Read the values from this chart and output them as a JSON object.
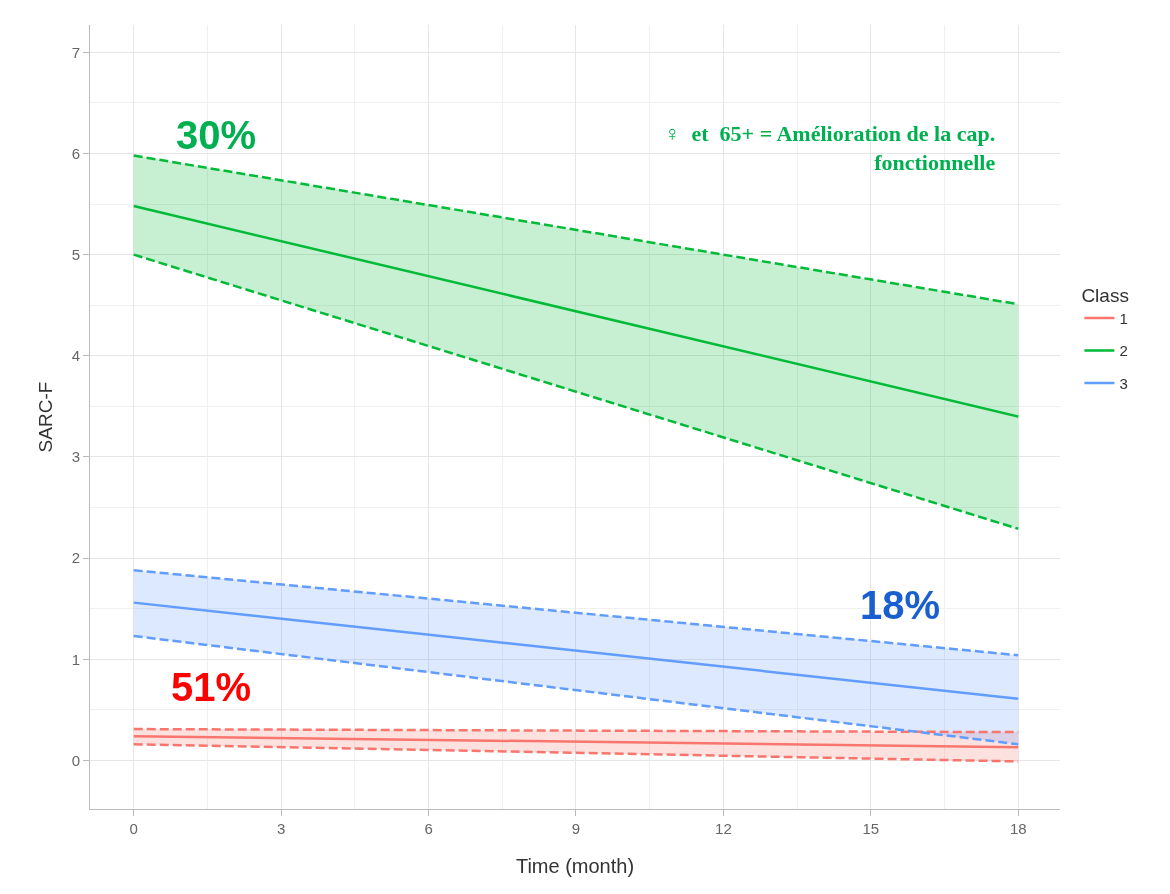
{
  "chart_data": {
    "type": "line",
    "xlabel": "Time (month)",
    "ylabel": "SARC-F",
    "legend_title": "Class",
    "xlim": [
      -0.89,
      18.85
    ],
    "xticks": [
      0,
      3,
      6,
      9,
      12,
      15,
      18
    ],
    "ylim": [
      -0.48,
      7.27
    ],
    "yticks": [
      0,
      1,
      2,
      3,
      4,
      5,
      6,
      7
    ],
    "grid": true,
    "legend": "right",
    "line_style": "solid",
    "marker": "none",
    "x": [
      0,
      18
    ],
    "series": [
      {
        "name": "1",
        "color": "#f8766d",
        "values": [
          0.24,
          0.13
        ],
        "lower": [
          0.16,
          -0.01
        ],
        "upper": [
          0.31,
          0.28
        ]
      },
      {
        "name": "2",
        "color": "#00ba38",
        "values": [
          5.48,
          3.4
        ],
        "lower": [
          5.0,
          2.29
        ],
        "upper": [
          5.98,
          4.51
        ]
      },
      {
        "name": "3",
        "color": "#619cff",
        "values": [
          1.56,
          0.61
        ],
        "lower": [
          1.23,
          0.16
        ],
        "upper": [
          1.88,
          1.04
        ]
      },
      {
        "color": "#f8766d",
        "line_style": "dashed",
        "values": [
          0.16,
          -0.01
        ]
      },
      {
        "color": "#f8766d",
        "line_style": "dashed",
        "values": [
          0.31,
          0.28
        ]
      },
      {
        "color": "#00ba38",
        "line_style": "dashed",
        "values": [
          5.0,
          2.29
        ]
      },
      {
        "color": "#00ba38",
        "line_style": "dashed",
        "values": [
          5.98,
          4.51
        ]
      },
      {
        "color": "#619cff",
        "line_style": "dashed",
        "values": [
          1.23,
          0.16
        ]
      },
      {
        "color": "#619cff",
        "line_style": "dashed",
        "values": [
          1.88,
          1.04
        ]
      }
    ],
    "annotations": [
      "30%",
      "51%",
      "18%",
      "♀  et  65+ = Amélioration de la cap.\nfonctionnelle"
    ]
  }
}
